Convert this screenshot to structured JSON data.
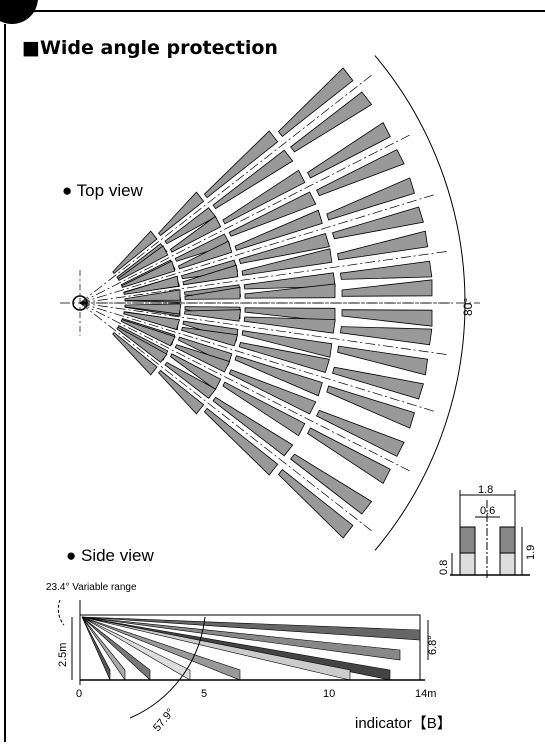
{
  "header": {
    "title": "■Wide angle protection"
  },
  "top_view": {
    "label": "● Top view",
    "angle": "80°"
  },
  "inset": {
    "width_outer": "1.8",
    "width_inner": "0.6",
    "height_total": "1.9",
    "height_low": "0.8"
  },
  "side_view": {
    "label": "● Side view",
    "variable_range": "23.4° Variable range",
    "height": "2.5m",
    "beam_angle": "6.8°",
    "tilt_angle": "57.9°",
    "axis_labels": [
      "0",
      "5",
      "10",
      "14m"
    ]
  },
  "footer": {
    "indicator": "indicator【B】"
  }
}
